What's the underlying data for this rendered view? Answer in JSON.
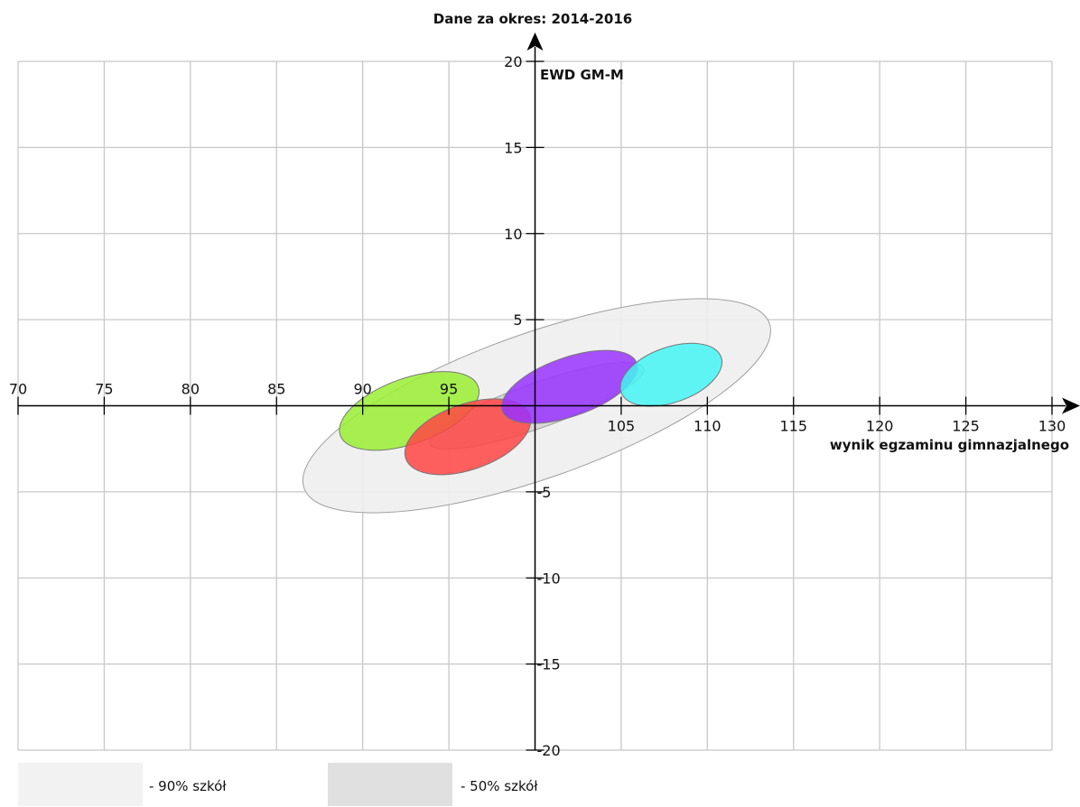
{
  "chart_data": {
    "type": "scatter",
    "title": "Dane za okres: 2014-2016",
    "xlabel": "wynik egzaminu gimnazjalnego",
    "ylabel": "EWD GM-M",
    "xlim": [
      70,
      130
    ],
    "ylim": [
      -20,
      20
    ],
    "x_ticks": [
      70,
      75,
      80,
      85,
      90,
      95,
      100,
      105,
      110,
      115,
      120,
      125,
      130
    ],
    "y_ticks": [
      -20,
      -15,
      -10,
      -5,
      5,
      10,
      15,
      20
    ],
    "x_tick_labels": [
      "70",
      "75",
      "80",
      "85",
      "90",
      "95",
      "",
      "105",
      "110",
      "115",
      "120",
      "125",
      "130"
    ],
    "y_tick_labels": [
      "-20",
      "-15",
      "-10",
      "-5",
      "5",
      "10",
      "15",
      "20"
    ],
    "grid": true,
    "reference_regions": [
      {
        "name": "90% szkół",
        "cx": 100.1,
        "cy": 0,
        "rx": 13.5,
        "ry": 4.2,
        "slope": 0.355,
        "color": "#eeeeee"
      },
      {
        "name": "50% szkół",
        "cx": 100.1,
        "cy": 0,
        "rx": 6.2,
        "ry": 1.3,
        "slope": 0.355,
        "color": "#d9d9d9"
      }
    ],
    "series": [
      {
        "color": "#99ee33",
        "cx": 92.7,
        "cy": -0.3,
        "rx": 4.0,
        "ry": 1.9,
        "slope": 0.355
      },
      {
        "color": "#ff4444",
        "cx": 96.1,
        "cy": -1.8,
        "rx": 3.6,
        "ry": 1.9,
        "slope": 0.355
      },
      {
        "color": "#9933ff",
        "cx": 102.0,
        "cy": 1.1,
        "rx": 3.9,
        "ry": 1.7,
        "slope": 0.355
      },
      {
        "color": "#44f4f4",
        "cx": 107.9,
        "cy": 1.8,
        "rx": 2.9,
        "ry": 1.6,
        "slope": 0.355
      }
    ],
    "legend": {
      "placement": "bottom-left",
      "items": [
        {
          "label": "- 90% szkół",
          "color": "#f2f2f2"
        },
        {
          "label": "- 50% szkół",
          "color": "#e0e0e0"
        }
      ]
    }
  }
}
